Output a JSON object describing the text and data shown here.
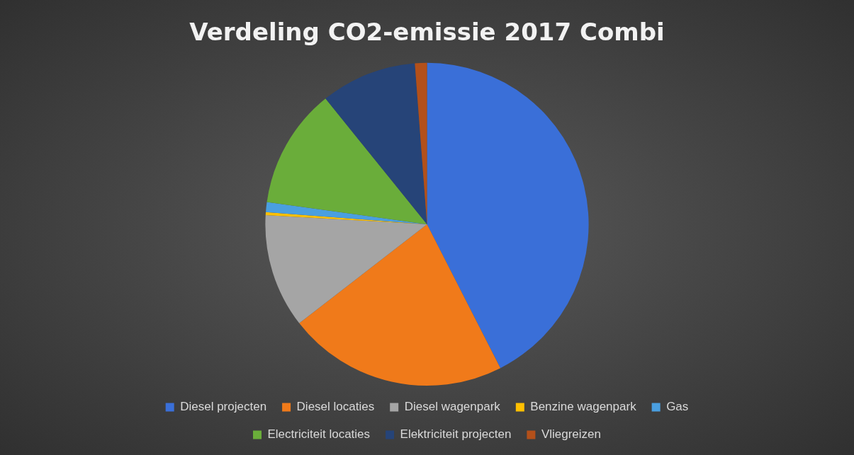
{
  "chart_data": {
    "type": "pie",
    "title": "Verdeling CO2-emissie 2017 Combi",
    "categories": [
      "Diesel projecten",
      "Diesel locaties",
      "Diesel wagenpark",
      "Benzine wagenpark",
      "Gas",
      "Electriciteit locaties",
      "Elektriciteit projecten",
      "Vliegreizen"
    ],
    "values": [
      42.5,
      22,
      11.4,
      0.3,
      1,
      12,
      9.6,
      1.2
    ],
    "colors": [
      "#3a6fd8",
      "#f07a1a",
      "#a5a5a5",
      "#ffc000",
      "#4a9fe0",
      "#6aad3a",
      "#264478",
      "#b3501a"
    ],
    "legend": "bottom"
  }
}
